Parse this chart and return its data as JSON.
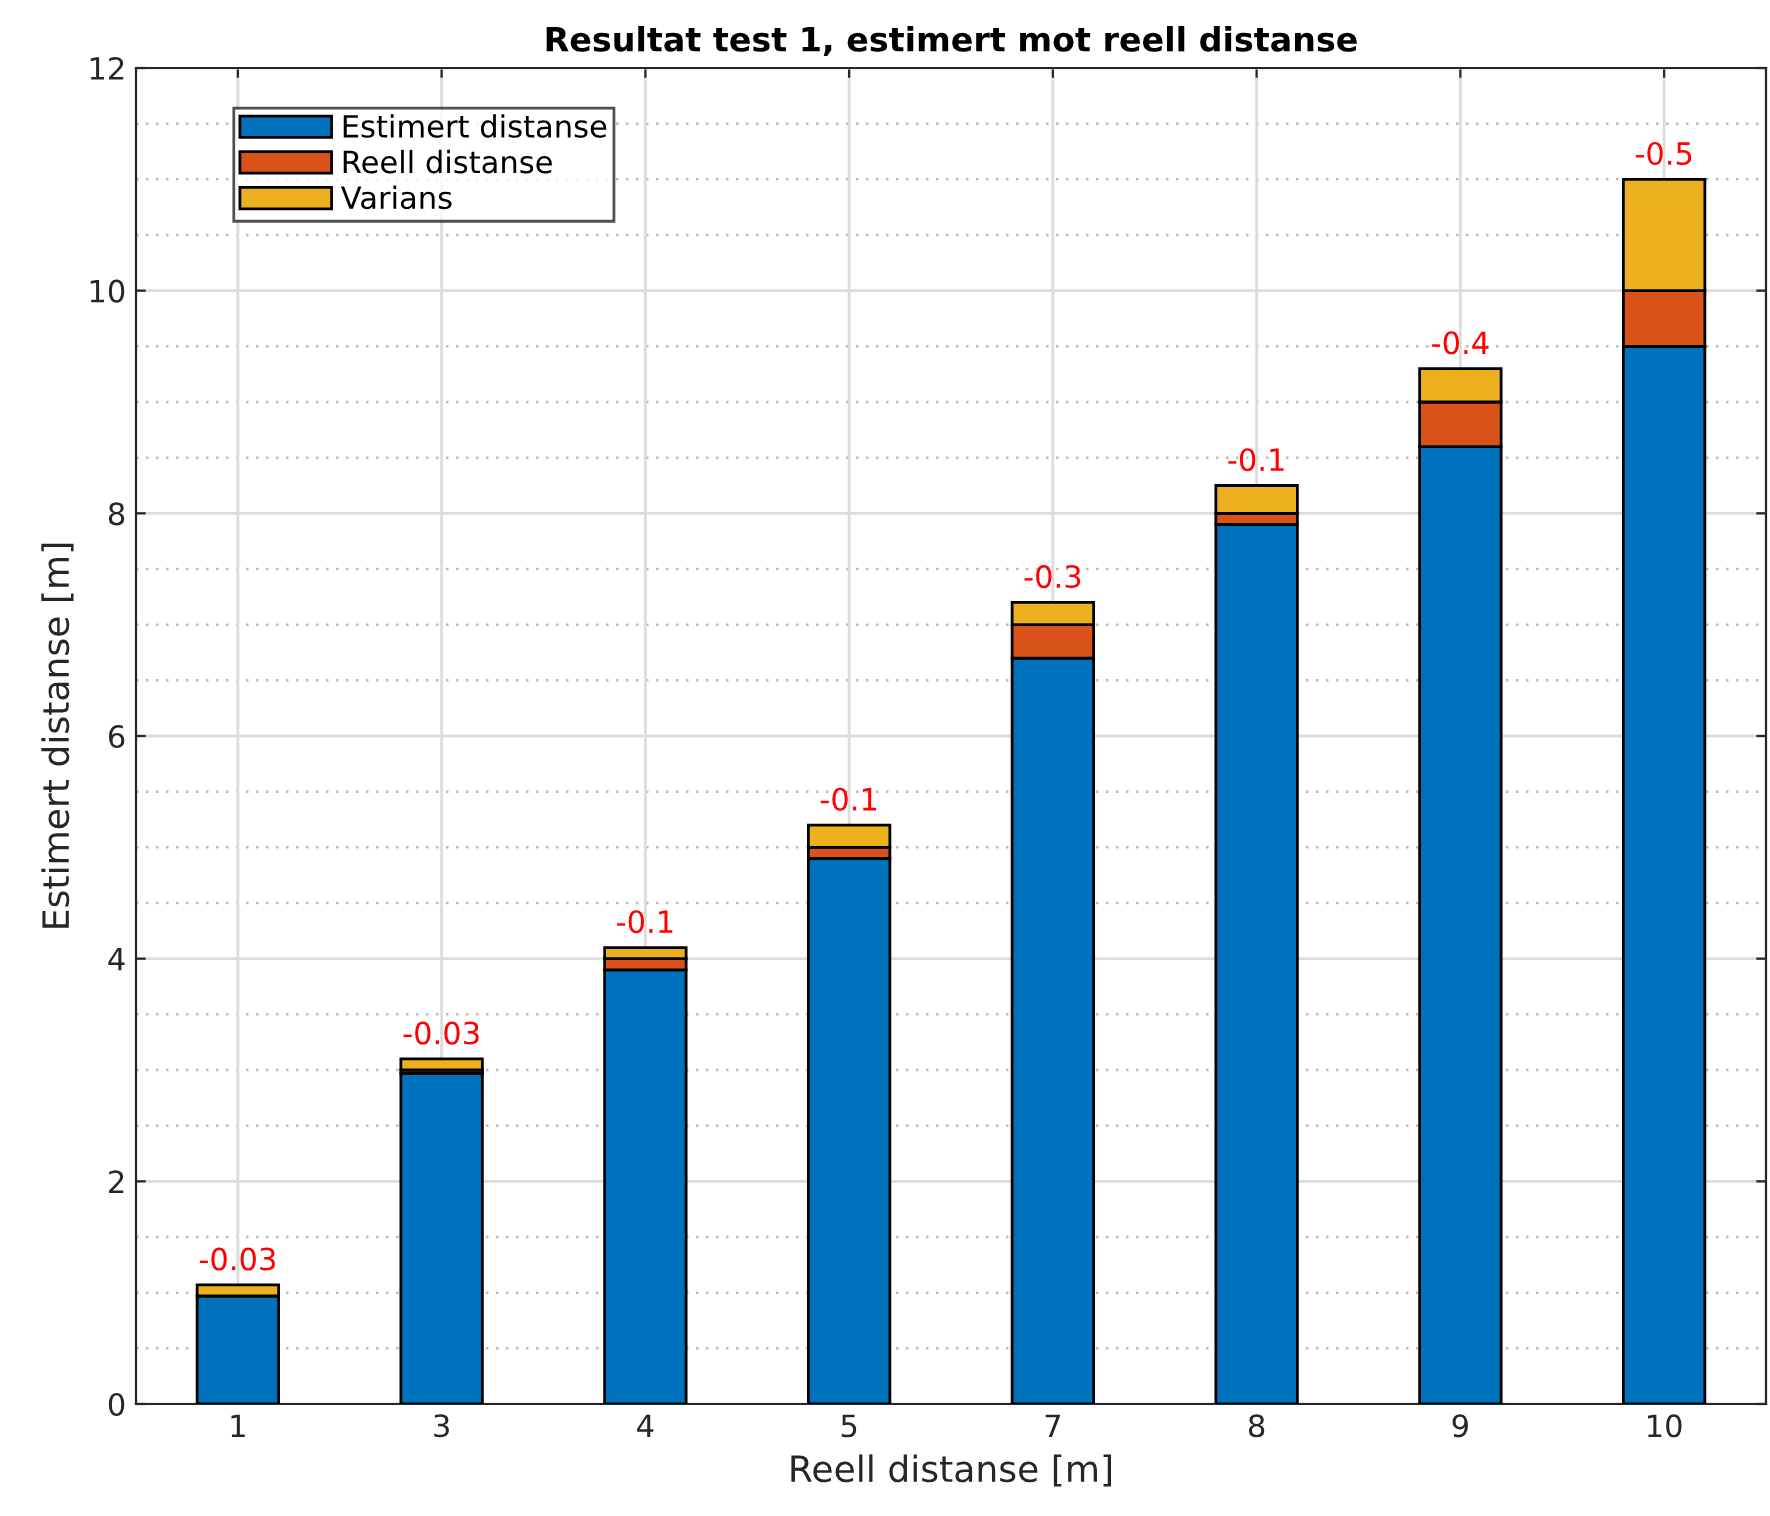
{
  "chart_data": {
    "type": "bar",
    "title": "Resultat test 1, estimert mot reell distanse",
    "xlabel": "Reell distanse [m]",
    "ylabel": "Estimert distanse [m]",
    "categories": [
      "1",
      "3",
      "4",
      "5",
      "7",
      "8",
      "9",
      "10"
    ],
    "stacked": true,
    "series": [
      {
        "name": "Estimert distanse",
        "color": "#0072bd",
        "values": [
          0.97,
          2.97,
          3.9,
          4.9,
          6.7,
          7.9,
          8.6,
          9.5
        ]
      },
      {
        "name": "Reell distanse",
        "color": "#d95319",
        "values": [
          null,
          0.03,
          0.1,
          0.1,
          0.3,
          0.1,
          0.4,
          0.5
        ]
      },
      {
        "name": "Varians",
        "color": "#edb120",
        "values": [
          0.1,
          0.1,
          0.1,
          0.2,
          0.2,
          0.25,
          0.3,
          1.0
        ]
      }
    ],
    "value_labels": [
      "-0.03",
      "-0.03",
      "-0.1",
      "-0.1",
      "-0.3",
      "-0.1",
      "-0.4",
      "-0.5"
    ],
    "ylim": [
      0,
      12
    ],
    "yticks": [
      0,
      2,
      4,
      6,
      8,
      10,
      12
    ],
    "grid": true,
    "legend": "top left"
  }
}
